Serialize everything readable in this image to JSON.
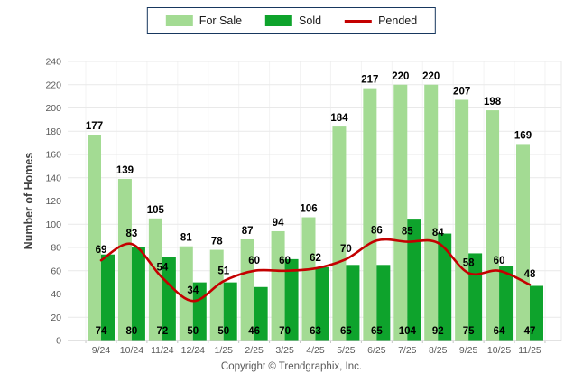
{
  "footer": {
    "text": "Copyright © Trendgraphix, Inc."
  },
  "axis": {
    "ylabel": "Number of Homes",
    "yticks": [
      0,
      20,
      40,
      60,
      80,
      100,
      120,
      140,
      160,
      180,
      200,
      220,
      240
    ],
    "tick_color": "#595959",
    "ylabel_color": "#404040"
  },
  "colors": {
    "for_sale": "#A3DB93",
    "sold": "#0EA32C",
    "pended": "#C40000",
    "grid": "#E9E9E9",
    "grid_vertical": "#F3F3F3",
    "baseline": "#C6C6C6",
    "label": "#000000",
    "legend_border": "#17375E"
  },
  "chart_data": {
    "type": "bar",
    "subtype": "grouped bars with smooth line overlay",
    "title": "",
    "xlabel": "",
    "ylabel": "Number of Homes",
    "ylim": [
      0,
      240
    ],
    "ytick_step": 20,
    "grid": true,
    "legend_position": "top-center",
    "categories": [
      "9/24",
      "10/24",
      "11/24",
      "12/24",
      "1/25",
      "2/25",
      "3/25",
      "4/25",
      "5/25",
      "6/25",
      "7/25",
      "8/25",
      "9/25",
      "10/25",
      "11/25"
    ],
    "series": [
      {
        "name": "For Sale",
        "type": "bar",
        "color": "#A3DB93",
        "values": [
          177,
          139,
          105,
          81,
          78,
          87,
          94,
          106,
          184,
          217,
          220,
          220,
          207,
          198,
          169
        ]
      },
      {
        "name": "Sold",
        "type": "bar",
        "color": "#0EA32C",
        "values": [
          74,
          80,
          72,
          50,
          50,
          46,
          70,
          63,
          65,
          65,
          104,
          92,
          75,
          64,
          47
        ]
      },
      {
        "name": "Pended",
        "type": "line",
        "color": "#C40000",
        "values": [
          69,
          83,
          54,
          34,
          51,
          60,
          60,
          62,
          70,
          86,
          85,
          84,
          58,
          60,
          48
        ]
      }
    ]
  }
}
